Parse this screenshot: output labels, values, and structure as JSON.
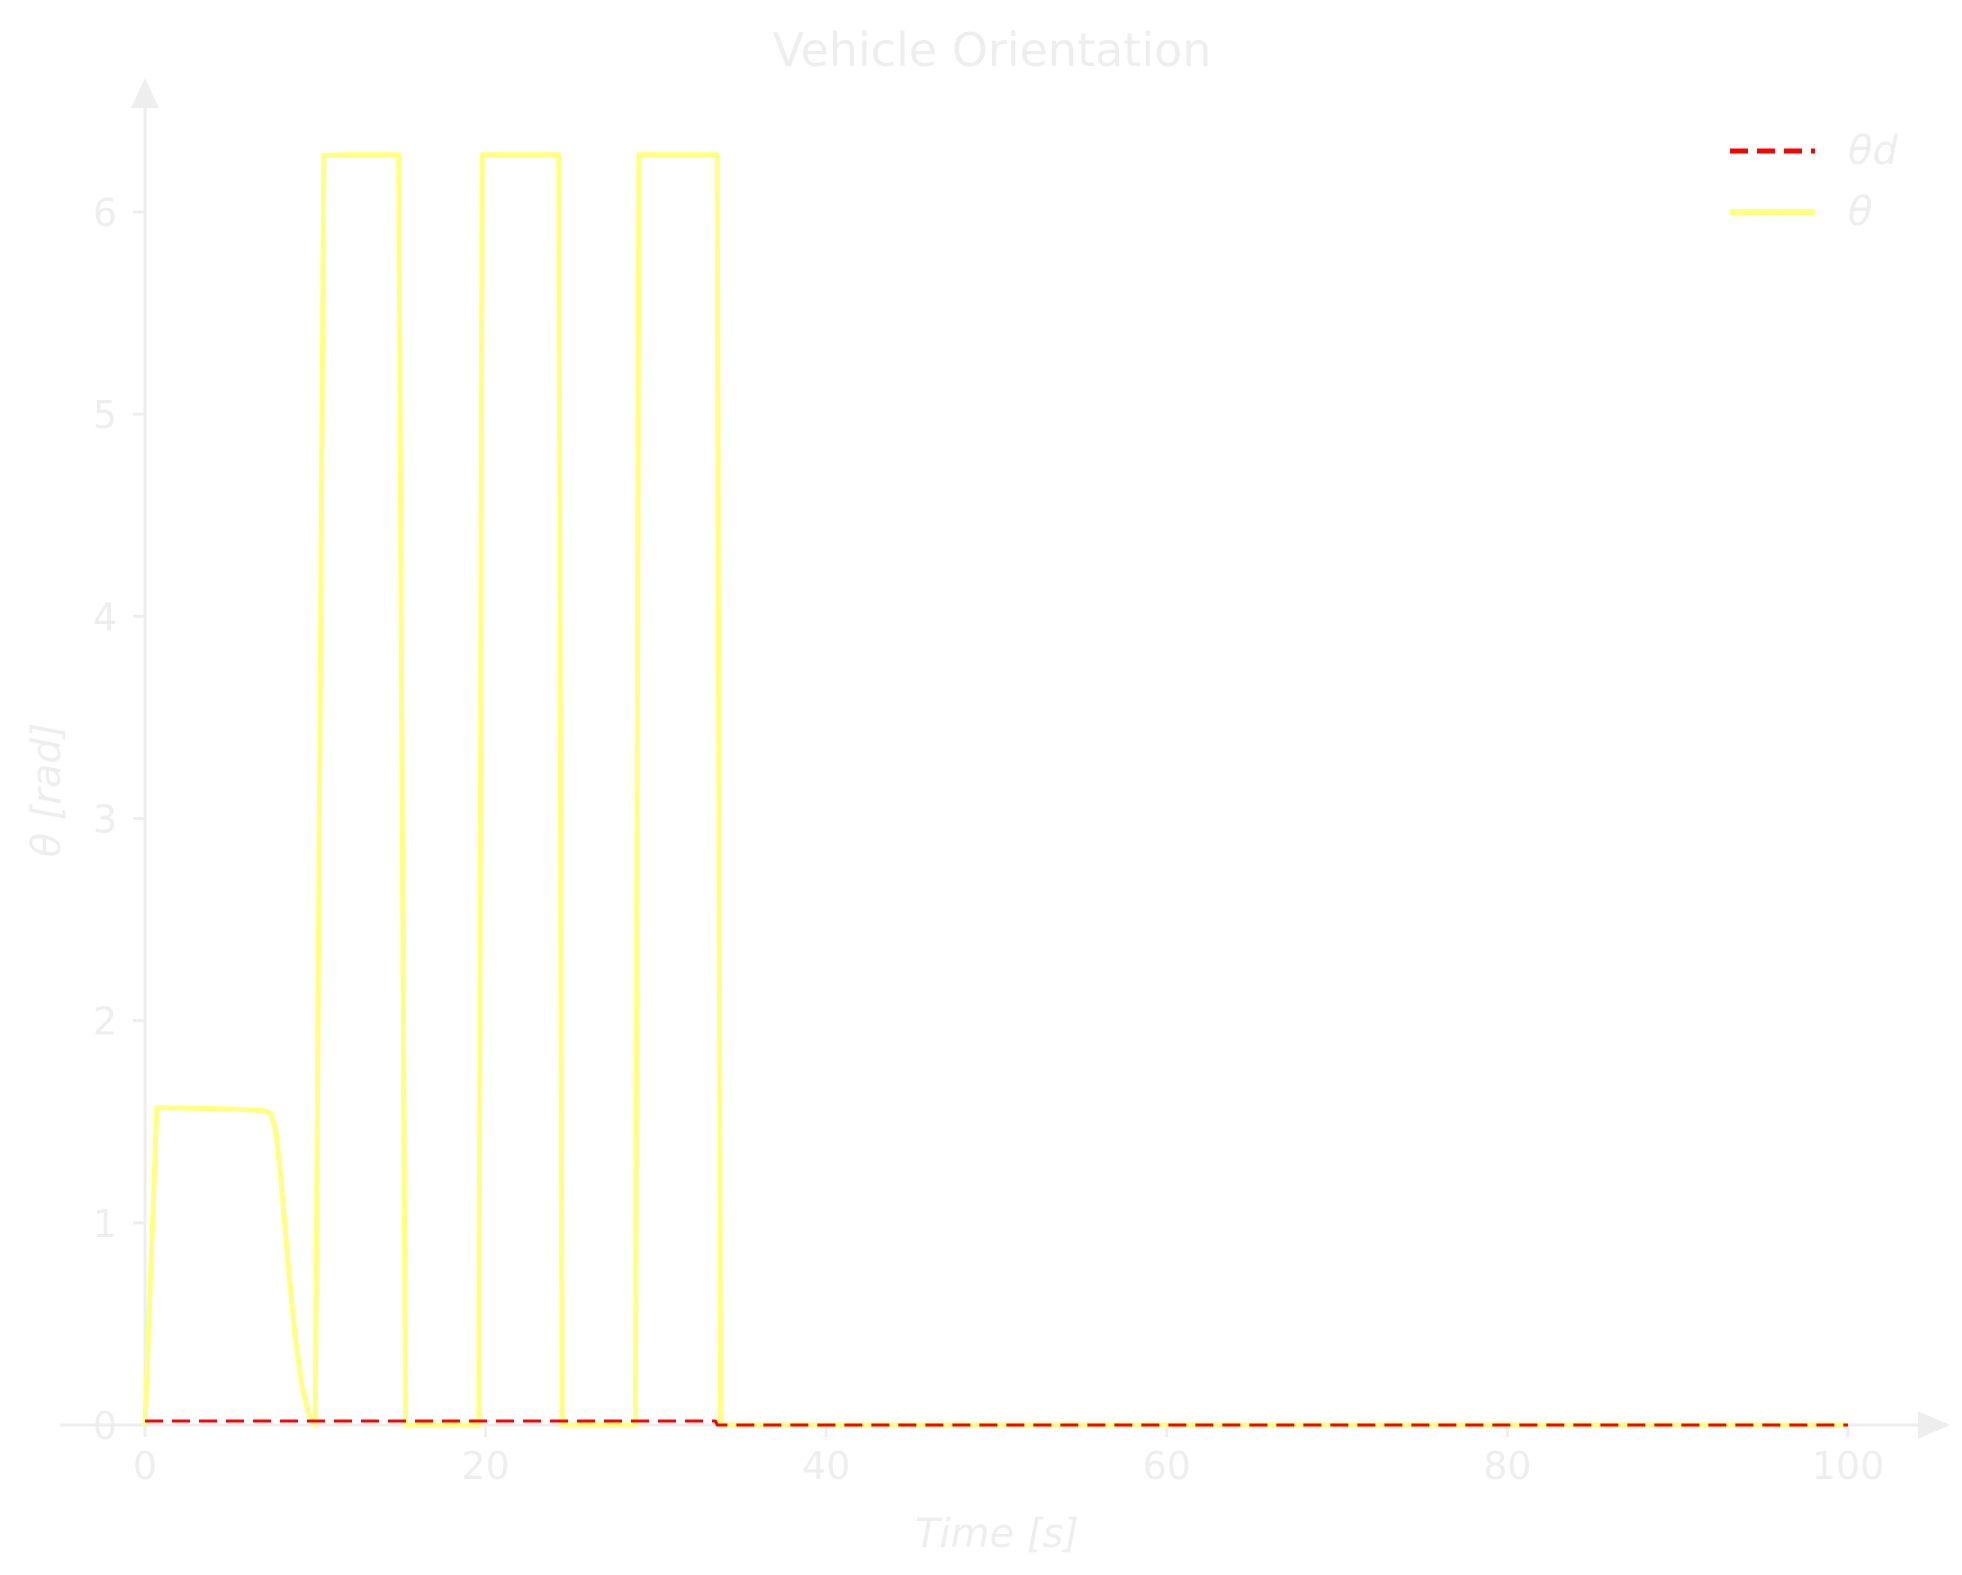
{
  "chart_data": {
    "type": "line",
    "title": "Vehicle Orientation",
    "xlabel": "Time [s]",
    "ylabel": "θ [rad]",
    "xlim": [
      0,
      100
    ],
    "ylim": [
      0,
      6.5
    ],
    "xticks": [
      0,
      20,
      40,
      60,
      80,
      100
    ],
    "yticks": [
      0,
      1,
      2,
      3,
      4,
      5,
      6
    ],
    "grid": false,
    "legend": "top-right",
    "colors": {
      "axis": "#eeeeee",
      "text": "#eeeeee",
      "theta_d": "#ff0000",
      "theta": "#ffff80"
    },
    "series": [
      {
        "name": "θd",
        "style": "dashed",
        "points": [
          [
            0,
            0.02
          ],
          [
            33.5,
            0.02
          ],
          [
            33.6,
            0.0
          ],
          [
            100,
            0.0
          ]
        ]
      },
      {
        "name": "θ",
        "style": "solid",
        "points": [
          [
            0,
            0.0
          ],
          [
            0.7,
            1.57
          ],
          [
            3,
            1.567
          ],
          [
            5,
            1.563
          ],
          [
            7,
            1.555
          ],
          [
            7.4,
            1.54
          ],
          [
            7.7,
            1.45
          ],
          [
            8,
            1.2
          ],
          [
            8.4,
            0.8
          ],
          [
            8.8,
            0.45
          ],
          [
            9.2,
            0.2
          ],
          [
            9.6,
            0.06
          ],
          [
            10,
            0.0
          ],
          [
            10.5,
            6.28
          ],
          [
            12,
            6.283
          ],
          [
            14.9,
            6.283
          ],
          [
            15.3,
            0.0
          ],
          [
            19.6,
            0.0
          ],
          [
            19.8,
            6.283
          ],
          [
            24.3,
            6.283
          ],
          [
            24.5,
            0.0
          ],
          [
            28.8,
            0.0
          ],
          [
            29.0,
            6.283
          ],
          [
            33.6,
            6.283
          ],
          [
            33.8,
            0.0
          ],
          [
            100,
            0.0
          ]
        ]
      }
    ]
  }
}
